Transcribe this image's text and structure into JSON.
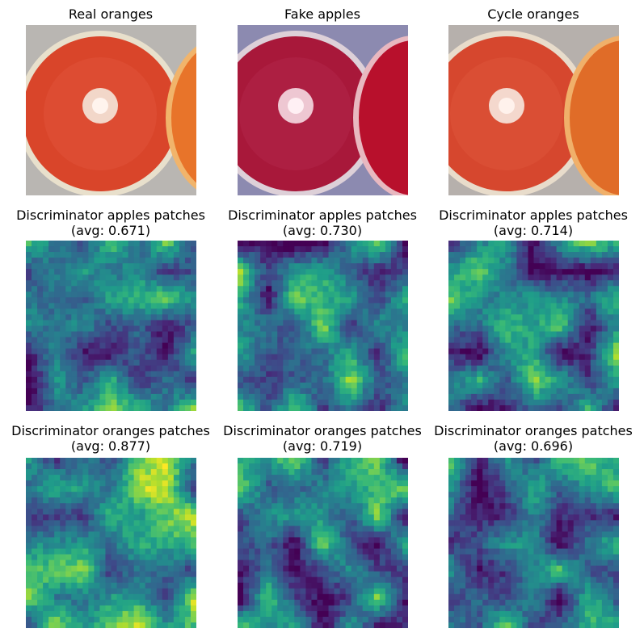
{
  "figure": {
    "row1_titles": [
      "Real oranges",
      "Fake apples",
      "Cycle oranges"
    ],
    "row2_titles": [
      [
        "Discriminator apples patches",
        "(avg: 0.671)"
      ],
      [
        "Discriminator apples patches",
        "(avg: 0.730)"
      ],
      [
        "Discriminator apples patches",
        "(avg: 0.714)"
      ]
    ],
    "row3_titles": [
      [
        "Discriminator oranges patches",
        "(avg: 0.877)"
      ],
      [
        "Discriminator oranges patches",
        "(avg: 0.719)"
      ],
      [
        "Discriminator oranges patches",
        "(avg: 0.696)"
      ]
    ]
  },
  "chart_data": [
    {
      "type": "image",
      "title": "Real oranges",
      "palette": "orange"
    },
    {
      "type": "image",
      "title": "Fake apples",
      "palette": "apple"
    },
    {
      "type": "image",
      "title": "Cycle oranges",
      "palette": "orange"
    },
    {
      "type": "heatmap",
      "title": "Discriminator apples patches",
      "avg": 0.671,
      "colormap": "viridis"
    },
    {
      "type": "heatmap",
      "title": "Discriminator apples patches",
      "avg": 0.73,
      "colormap": "viridis"
    },
    {
      "type": "heatmap",
      "title": "Discriminator apples patches",
      "avg": 0.714,
      "colormap": "viridis"
    },
    {
      "type": "heatmap",
      "title": "Discriminator oranges patches",
      "avg": 0.877,
      "colormap": "viridis"
    },
    {
      "type": "heatmap",
      "title": "Discriminator oranges patches",
      "avg": 0.719,
      "colormap": "viridis"
    },
    {
      "type": "heatmap",
      "title": "Discriminator oranges patches",
      "avg": 0.696,
      "colormap": "viridis"
    }
  ]
}
